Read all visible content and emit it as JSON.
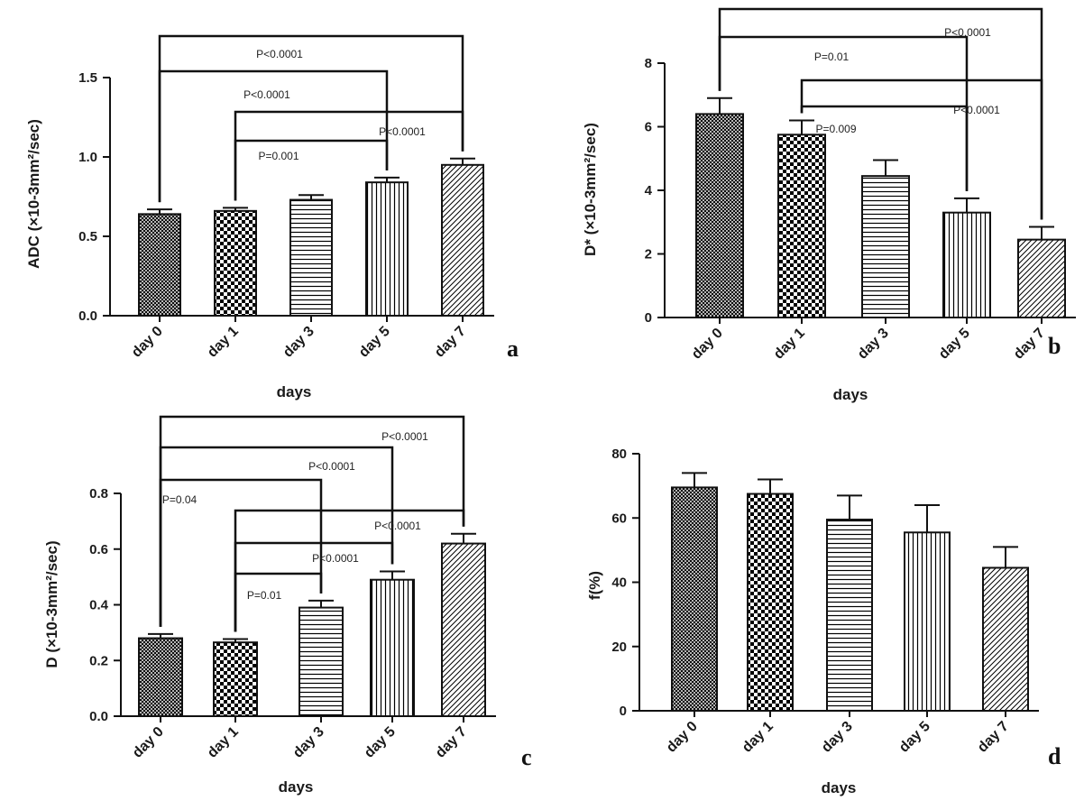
{
  "chart_data": [
    {
      "type": "bar",
      "panel_label": "a",
      "categories": [
        "day 0",
        "day 1",
        "day 3",
        "day 5",
        "day 7"
      ],
      "values": [
        0.64,
        0.66,
        0.73,
        0.84,
        0.95
      ],
      "errors": [
        0.03,
        0.02,
        0.03,
        0.03,
        0.04
      ],
      "xlabel": "days",
      "ylabel": "ADC (×10-3mm²/sec)",
      "ylim": [
        0,
        1.5
      ],
      "yticks": [
        "0.0",
        "0.5",
        "1.0",
        "1.5"
      ],
      "yticks_values": [
        0,
        0.5,
        1.0,
        1.5
      ],
      "comparisons": [
        {
          "from": "day 0",
          "to": "day 7",
          "label": "P<0.0001"
        },
        {
          "from": "day 0",
          "to": "day 5",
          "label": "P<0.0001"
        },
        {
          "from": "day 1",
          "to": "day 7",
          "label": "P<0.0001"
        },
        {
          "from": "day 1",
          "to": "day 5",
          "label": "P=0.001"
        }
      ]
    },
    {
      "type": "bar",
      "panel_label": "b",
      "categories": [
        "day 0",
        "day 1",
        "day 3",
        "day 5",
        "day 7"
      ],
      "values": [
        6.4,
        5.75,
        4.45,
        3.3,
        2.45
      ],
      "errors": [
        0.5,
        0.45,
        0.5,
        0.45,
        0.4
      ],
      "xlabel": "days",
      "ylabel": "D* (×10-3mm²/sec)",
      "ylim": [
        0,
        8
      ],
      "yticks": [
        "0",
        "2",
        "4",
        "6",
        "8"
      ],
      "yticks_values": [
        0,
        2,
        4,
        6,
        8
      ],
      "comparisons": [
        {
          "from": "day 0",
          "to": "day 7",
          "label": "P<0.0001"
        },
        {
          "from": "day 0",
          "to": "day 5",
          "label": "P=0.01"
        },
        {
          "from": "day 1",
          "to": "day 7",
          "label": "P<0.0001"
        },
        {
          "from": "day 1",
          "to": "day 5",
          "label": "P=0.009"
        }
      ]
    },
    {
      "type": "bar",
      "panel_label": "c",
      "categories": [
        "day 0",
        "day 1",
        "day 3",
        "day 5",
        "day 7"
      ],
      "values": [
        0.28,
        0.265,
        0.39,
        0.49,
        0.62
      ],
      "errors": [
        0.015,
        0.012,
        0.025,
        0.03,
        0.035
      ],
      "xlabel": "days",
      "ylabel": "D (×10-3mm²/sec)",
      "ylim": [
        0,
        0.8
      ],
      "yticks": [
        "0.0",
        "0.2",
        "0.4",
        "0.6",
        "0.8"
      ],
      "yticks_values": [
        0,
        0.2,
        0.4,
        0.6,
        0.8
      ],
      "comparisons": [
        {
          "from": "day 0",
          "to": "day 7",
          "label": "P<0.0001"
        },
        {
          "from": "day 0",
          "to": "day 5",
          "label": "P<0.0001"
        },
        {
          "from": "day 0",
          "to": "day 3",
          "label": "P=0.04"
        },
        {
          "from": "day 1",
          "to": "day 7",
          "label": "P<0.0001"
        },
        {
          "from": "day 1",
          "to": "day 5",
          "label": "P<0.0001"
        },
        {
          "from": "day 1",
          "to": "day 3",
          "label": "P=0.01"
        }
      ]
    },
    {
      "type": "bar",
      "panel_label": "d",
      "categories": [
        "day 0",
        "day 1",
        "day 3",
        "day 5",
        "day 7"
      ],
      "values": [
        69.5,
        67.5,
        59.5,
        55.5,
        44.5
      ],
      "errors": [
        4.5,
        4.5,
        7.5,
        8.5,
        6.5
      ],
      "xlabel": "days",
      "ylabel": "f(%)",
      "ylim": [
        0,
        80
      ],
      "yticks": [
        "0",
        "20",
        "40",
        "60",
        "80"
      ],
      "yticks_values": [
        0,
        20,
        40,
        60,
        80
      ],
      "comparisons": []
    }
  ]
}
